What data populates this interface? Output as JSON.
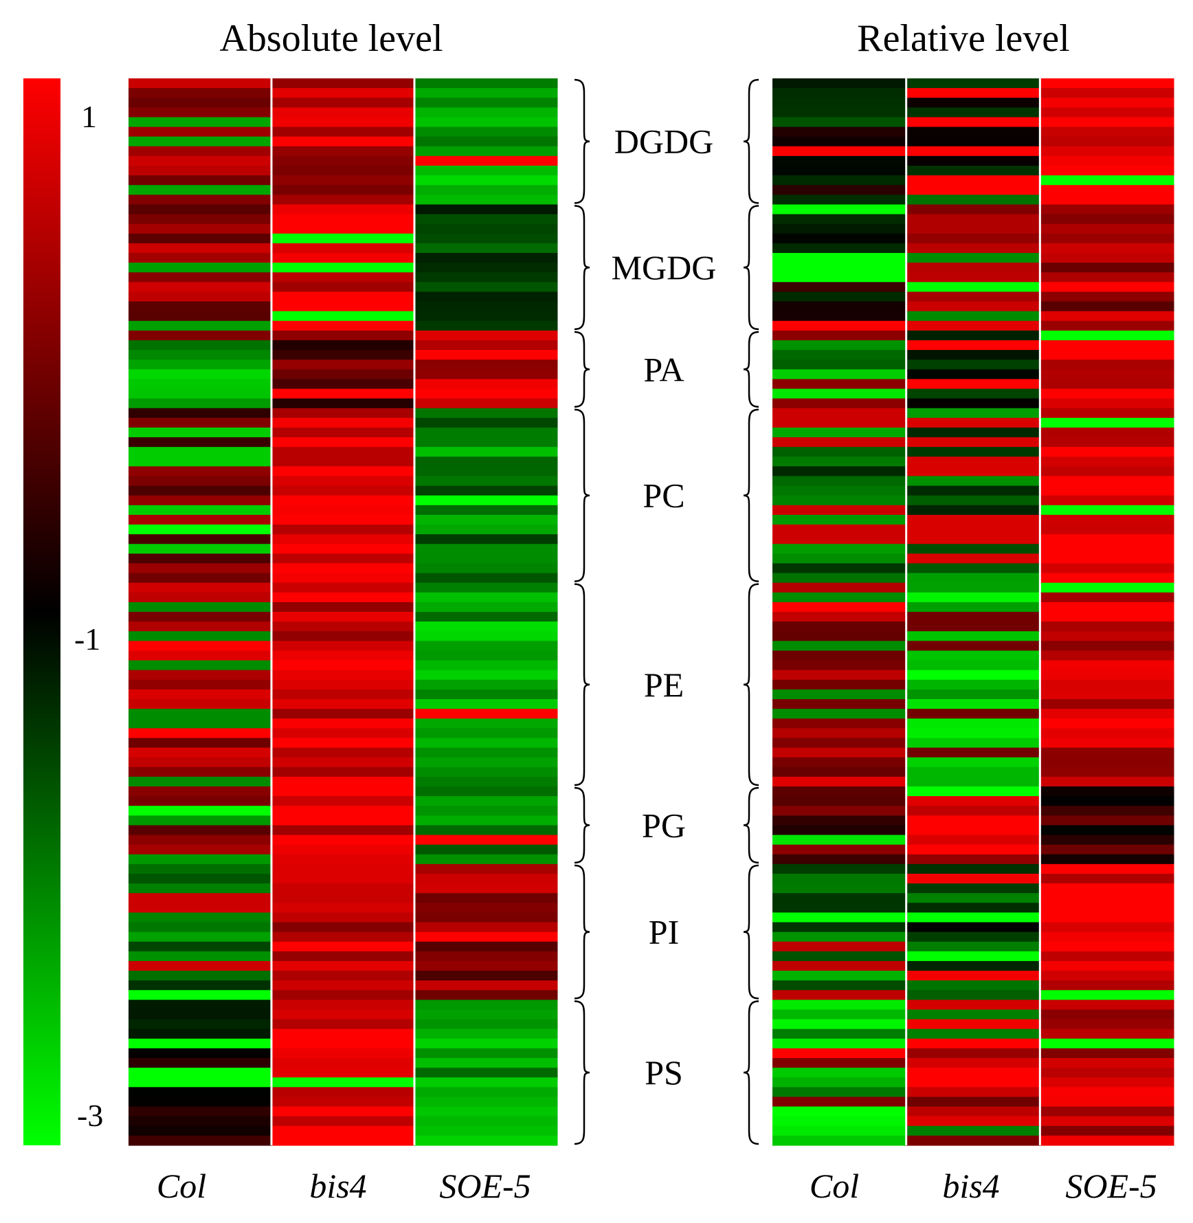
{
  "chart_data": {
    "type": "heatmap",
    "colormap": {
      "low": "#00ff00",
      "mid": "#000000",
      "high": "#ff0000"
    },
    "colorbar": {
      "range": [
        -3,
        1
      ],
      "mid": -1,
      "ticks": [
        "1",
        "-1",
        "-3"
      ],
      "tick_values": [
        1,
        -1,
        -3
      ]
    },
    "row_groups": [
      {
        "name": "DGDG",
        "rows": 13
      },
      {
        "name": "MGDG",
        "rows": 13
      },
      {
        "name": "PA",
        "rows": 8
      },
      {
        "name": "PC",
        "rows": 18
      },
      {
        "name": "PE",
        "rows": 21
      },
      {
        "name": "PG",
        "rows": 8
      },
      {
        "name": "PI",
        "rows": 14
      },
      {
        "name": "PS",
        "rows": 15
      }
    ],
    "panels": [
      {
        "title": "Absolute level",
        "columns": [
          "Col",
          "bis4",
          "SOE-5"
        ],
        "column_profiles": [
          {
            "name": "Col",
            "group_levels": [
              0.1,
              0.15,
              -2.4,
              -0.2,
              0.3,
              0.2,
              -1.8,
              -0.9
            ],
            "pattern": "mixed"
          },
          {
            "name": "bis4",
            "group_levels": [
              0.5,
              0.8,
              -0.3,
              0.85,
              0.7,
              0.75,
              0.5,
              0.85
            ],
            "pattern": "red"
          },
          {
            "name": "SOE-5",
            "group_levels": [
              -2.4,
              -1.6,
              0.5,
              -2.0,
              -2.2,
              -1.9,
              0.1,
              -2.3
            ],
            "pattern": "green"
          }
        ]
      },
      {
        "title": "Relative level",
        "columns": [
          "Col",
          "bis4",
          "SOE-5"
        ],
        "column_profiles": [
          {
            "name": "Col",
            "group_levels": [
              -1.2,
              -0.8,
              -2.3,
              -1.8,
              0.3,
              -0.4,
              -1.9,
              -2.4
            ],
            "pattern": "mixed"
          },
          {
            "name": "bis4",
            "group_levels": [
              -1.4,
              0.3,
              -1.1,
              -1.7,
              -2.5,
              0.7,
              -1.5,
              0.4
            ],
            "pattern": "mixed"
          },
          {
            "name": "SOE-5",
            "group_levels": [
              0.9,
              0.2,
              0.85,
              0.85,
              0.6,
              -0.5,
              0.9,
              0.5
            ],
            "pattern": "red"
          }
        ]
      }
    ]
  }
}
